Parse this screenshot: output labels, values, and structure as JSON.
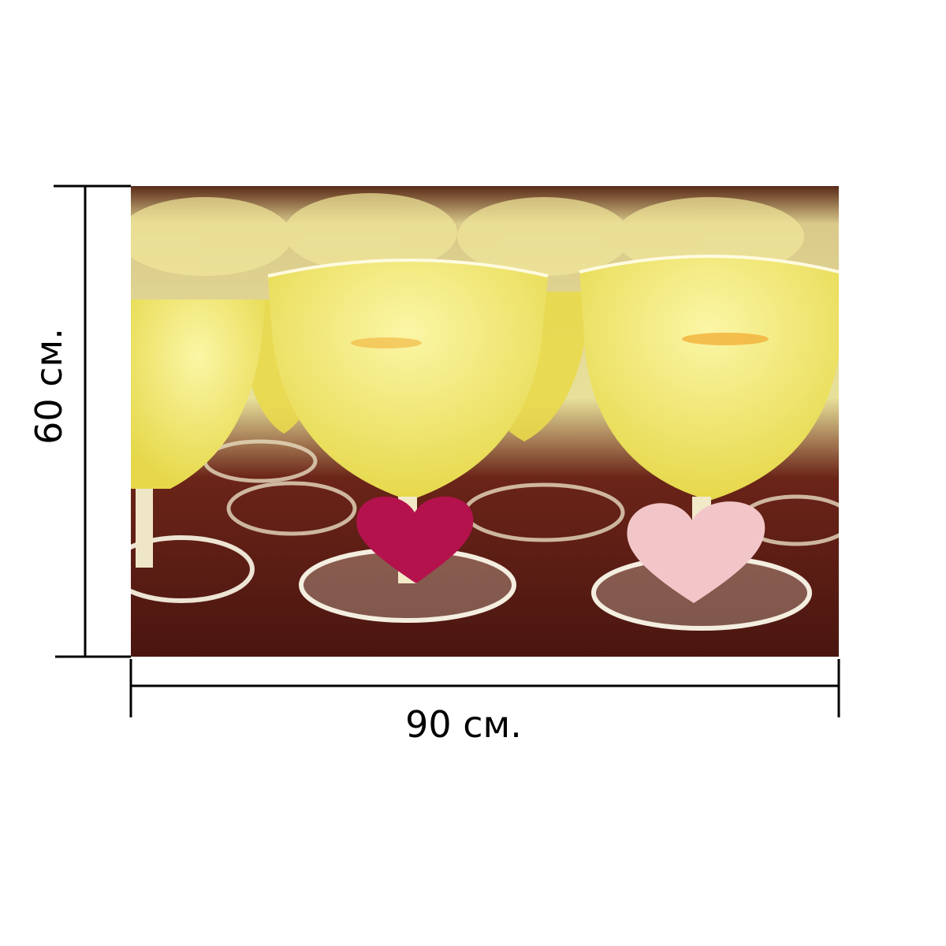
{
  "dimensions": {
    "height_label": "60 см.",
    "width_label": "90 см."
  }
}
